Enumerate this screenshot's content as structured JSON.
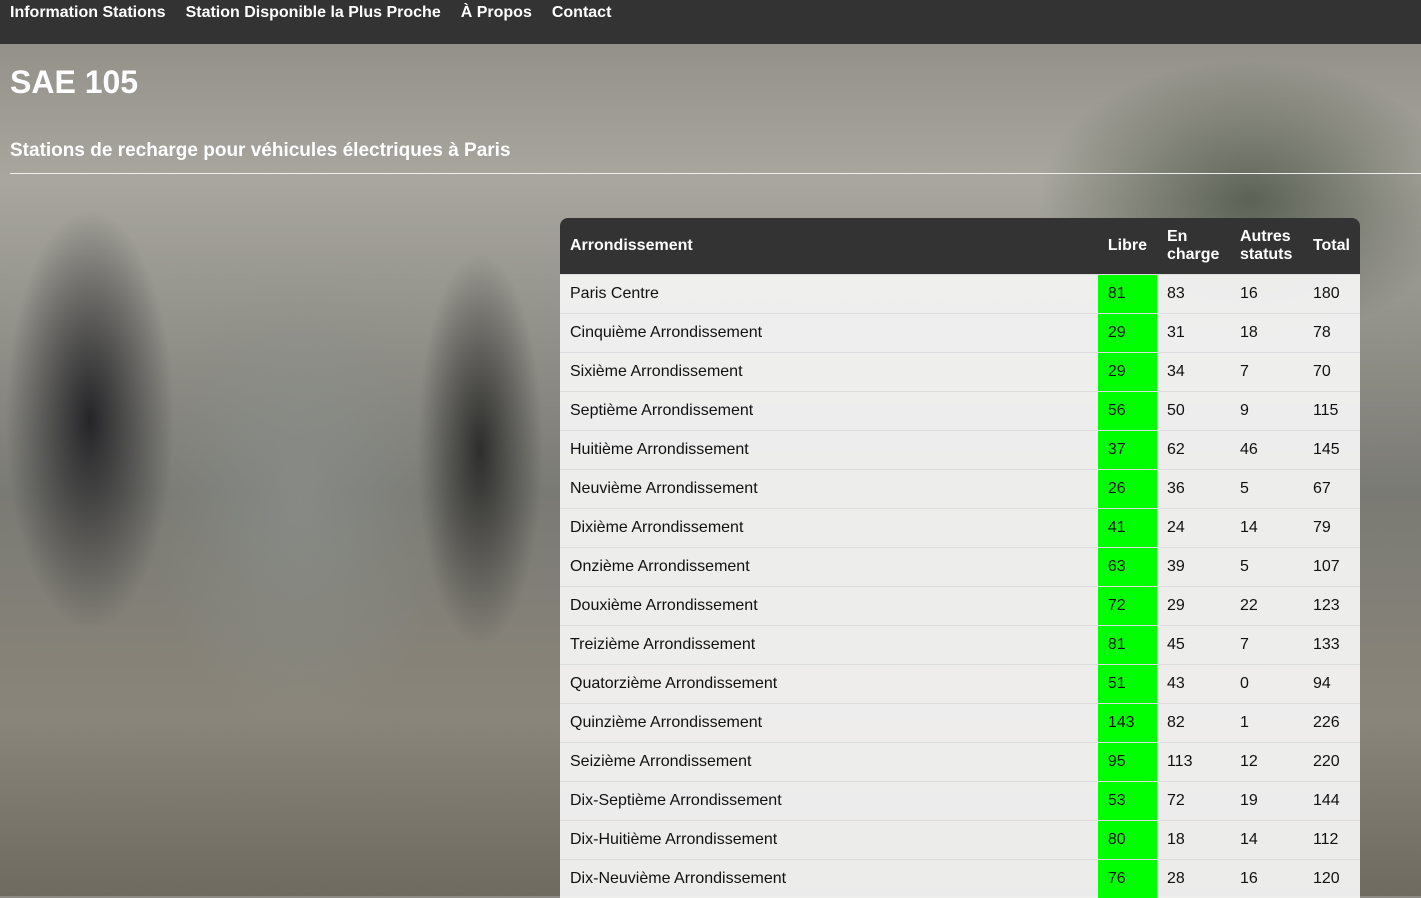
{
  "nav": {
    "items": [
      "Information Stations",
      "Station Disponible la Plus Proche",
      "À Propos",
      "Contact"
    ]
  },
  "header": {
    "title": "SAE 105",
    "subtitle": "Stations de recharge pour véhicules électriques à Paris"
  },
  "colors": {
    "libre_highlight": "#00ff00",
    "nav_bg": "#333333"
  },
  "table": {
    "headers": [
      "Arrondissement",
      "Libre",
      "En charge",
      "Autres statuts",
      "Total"
    ],
    "rows": [
      [
        "Paris Centre",
        "81",
        "83",
        "16",
        "180"
      ],
      [
        "Cinquième Arrondissement",
        "29",
        "31",
        "18",
        "78"
      ],
      [
        "Sixième Arrondissement",
        "29",
        "34",
        "7",
        "70"
      ],
      [
        "Septième Arrondissement",
        "56",
        "50",
        "9",
        "115"
      ],
      [
        "Huitième Arrondissement",
        "37",
        "62",
        "46",
        "145"
      ],
      [
        "Neuvième Arrondissement",
        "26",
        "36",
        "5",
        "67"
      ],
      [
        "Dixième Arrondissement",
        "41",
        "24",
        "14",
        "79"
      ],
      [
        "Onzième Arrondissement",
        "63",
        "39",
        "5",
        "107"
      ],
      [
        "Douxième Arrondissement",
        "72",
        "29",
        "22",
        "123"
      ],
      [
        "Treizième Arrondissement",
        "81",
        "45",
        "7",
        "133"
      ],
      [
        "Quatorzième Arrondissement",
        "51",
        "43",
        "0",
        "94"
      ],
      [
        "Quinzième Arrondissement",
        "143",
        "82",
        "1",
        "226"
      ],
      [
        "Seizième Arrondissement",
        "95",
        "113",
        "12",
        "220"
      ],
      [
        "Dix-Septième Arrondissement",
        "53",
        "72",
        "19",
        "144"
      ],
      [
        "Dix-Huitième Arrondissement",
        "80",
        "18",
        "14",
        "112"
      ],
      [
        "Dix-Neuvième Arrondissement",
        "76",
        "28",
        "16",
        "120"
      ]
    ]
  }
}
